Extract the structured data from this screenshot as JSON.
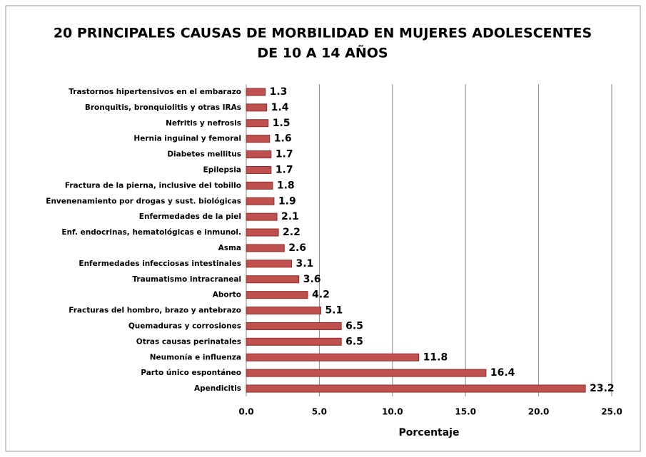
{
  "chart_data": {
    "type": "barh",
    "title": [
      "20 PRINCIPALES CAUSAS DE MORBILIDAD EN MUJERES ADOLESCENTES",
      "DE 10 A 14 AÑOS"
    ],
    "xlabel": "Porcentaje",
    "categories": [
      "Trastornos hipertensivos en el embarazo",
      "Bronquitis, bronquiolitis y otras IRAs",
      "Nefritis y nefrosis",
      "Hernia inguinal y femoral",
      "Diabetes mellitus",
      "Epilepsia",
      "Fractura de la pierna, inclusive del tobillo",
      "Envenenamiento por drogas y sust. biológicas",
      "Enfermedades de la piel",
      "Enf. endocrinas, hematológicas e inmunol.",
      "Asma",
      "Enfermedades infecciosas intestinales",
      "Traumatismo intracraneal",
      "Aborto",
      "Fracturas del hombro, brazo y antebrazo",
      "Quemaduras y corrosiones",
      "Otras causas perinatales",
      "Neumonía e influenza",
      "Parto único espontáneo",
      "Apendicitis"
    ],
    "values": [
      1.3,
      1.4,
      1.5,
      1.6,
      1.7,
      1.7,
      1.8,
      1.9,
      2.1,
      2.2,
      2.6,
      3.1,
      3.6,
      4.2,
      5.1,
      6.5,
      6.5,
      11.8,
      16.4,
      23.2
    ],
    "color": "#c0504d",
    "xlim": [
      0,
      25
    ],
    "xticks": [
      {
        "value": 0,
        "label": "0.0"
      },
      {
        "value": 5,
        "label": "5.0"
      },
      {
        "value": 10,
        "label": "10.0"
      },
      {
        "value": 15,
        "label": "15.0"
      },
      {
        "value": 20,
        "label": "20.0"
      },
      {
        "value": 25,
        "label": "25.0"
      }
    ],
    "grid": true
  }
}
